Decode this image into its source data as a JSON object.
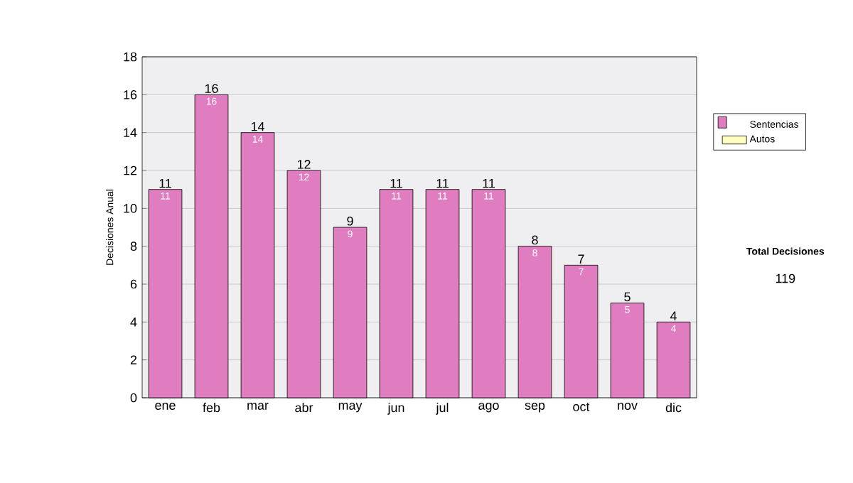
{
  "chart_data": {
    "type": "bar",
    "stacked": true,
    "ylabel": "Decisiones Anual",
    "categories": [
      "ene",
      "feb",
      "mar",
      "abr",
      "may",
      "jun",
      "jul",
      "ago",
      "sep",
      "oct",
      "nov",
      "dic"
    ],
    "series": [
      {
        "name": "Sentencias",
        "color": "#e07cc0",
        "values": [
          11,
          16,
          14,
          12,
          9,
          11,
          11,
          11,
          8,
          7,
          5,
          4
        ]
      },
      {
        "name": "Autos",
        "color": "#ffffc0",
        "values": [
          null,
          null,
          null,
          null,
          null,
          null,
          null,
          null,
          null,
          null,
          null,
          null
        ]
      }
    ],
    "totals": [
      "11",
      "16",
      "14",
      "12",
      "9",
      "11",
      "11",
      "11",
      "8",
      "7",
      "5",
      "4"
    ],
    "data_labels": true,
    "ylim": [
      0,
      18
    ],
    "yticks": [
      0,
      2,
      4,
      6,
      8,
      10,
      12,
      14,
      16,
      18
    ],
    "grid": "y",
    "legend": "right",
    "annotations": [
      "Total Decisiones",
      "119"
    ]
  }
}
